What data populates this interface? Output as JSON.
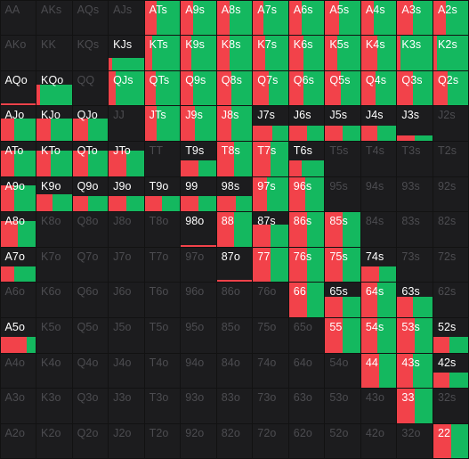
{
  "legend_colors": {
    "red": "#f2424a",
    "green": "#14b85f",
    "cell_bg": "#1c1c1e",
    "background": "#121212",
    "text_active": "#ffffff",
    "text_dim": "#4c4c50"
  },
  "ranks": [
    "A",
    "K",
    "Q",
    "J",
    "T",
    "9",
    "8",
    "7",
    "6",
    "5",
    "4",
    "3",
    "2"
  ],
  "rows": [
    {
      "cells": [
        {
          "label": "AA",
          "h": 0,
          "r": 0
        },
        {
          "label": "AKs",
          "h": 0,
          "r": 0
        },
        {
          "label": "AQs",
          "h": 0,
          "r": 0
        },
        {
          "label": "AJs",
          "h": 0,
          "r": 0
        },
        {
          "label": "ATs",
          "h": 1,
          "r": 0.35
        },
        {
          "label": "A9s",
          "h": 1,
          "r": 0.35
        },
        {
          "label": "A8s",
          "h": 1,
          "r": 0.35
        },
        {
          "label": "A7s",
          "h": 1,
          "r": 0.3
        },
        {
          "label": "A6s",
          "h": 1,
          "r": 0.35
        },
        {
          "label": "A5s",
          "h": 1,
          "r": 0.4
        },
        {
          "label": "A4s",
          "h": 1,
          "r": 0.35
        },
        {
          "label": "A3s",
          "h": 1,
          "r": 0.45
        },
        {
          "label": "A2s",
          "h": 1,
          "r": 0.35
        }
      ]
    },
    {
      "cells": [
        {
          "label": "AKo",
          "h": 0,
          "r": 0
        },
        {
          "label": "KK",
          "h": 0,
          "r": 0
        },
        {
          "label": "KQs",
          "h": 0,
          "r": 0
        },
        {
          "label": "KJs",
          "h": 0.35,
          "r": 0.1
        },
        {
          "label": "KTs",
          "h": 1,
          "r": 0.2
        },
        {
          "label": "K9s",
          "h": 1,
          "r": 0.3
        },
        {
          "label": "K8s",
          "h": 1,
          "r": 0.35
        },
        {
          "label": "K7s",
          "h": 1,
          "r": 0.35
        },
        {
          "label": "K6s",
          "h": 1,
          "r": 0.4
        },
        {
          "label": "K5s",
          "h": 1,
          "r": 0.35
        },
        {
          "label": "K4s",
          "h": 1,
          "r": 0.45
        },
        {
          "label": "K3s",
          "h": 1,
          "r": 0.1
        },
        {
          "label": "K2s",
          "h": 1,
          "r": 0.1
        }
      ]
    },
    {
      "cells": [
        {
          "label": "AQo",
          "h": 0.05,
          "r": 1
        },
        {
          "label": "KQo",
          "h": 0.6,
          "r": 0.1
        },
        {
          "label": "QQ",
          "h": 0,
          "r": 0
        },
        {
          "label": "QJs",
          "h": 1,
          "r": 0.2
        },
        {
          "label": "QTs",
          "h": 1,
          "r": 0.3
        },
        {
          "label": "Q9s",
          "h": 1,
          "r": 0.35
        },
        {
          "label": "Q8s",
          "h": 1,
          "r": 0.4
        },
        {
          "label": "Q7s",
          "h": 1,
          "r": 0.45
        },
        {
          "label": "Q6s",
          "h": 1,
          "r": 0.4
        },
        {
          "label": "Q5s",
          "h": 1,
          "r": 0.45
        },
        {
          "label": "Q4s",
          "h": 1,
          "r": 0.4
        },
        {
          "label": "Q3s",
          "h": 1,
          "r": 0.45
        },
        {
          "label": "Q2s",
          "h": 1,
          "r": 0.4
        }
      ]
    },
    {
      "cells": [
        {
          "label": "AJo",
          "h": 0.65,
          "r": 0.4
        },
        {
          "label": "KJo",
          "h": 0.65,
          "r": 0.4
        },
        {
          "label": "QJo",
          "h": 0.65,
          "r": 0.45
        },
        {
          "label": "JJ",
          "h": 0,
          "r": 0
        },
        {
          "label": "JTs",
          "h": 1,
          "r": 0.35
        },
        {
          "label": "J9s",
          "h": 1,
          "r": 0.4
        },
        {
          "label": "J8s",
          "h": 1,
          "r": 0.4
        },
        {
          "label": "J7s",
          "h": 0.45,
          "r": 0.55
        },
        {
          "label": "J6s",
          "h": 0.45,
          "r": 0.5
        },
        {
          "label": "J5s",
          "h": 0.45,
          "r": 0.5
        },
        {
          "label": "J4s",
          "h": 0.45,
          "r": 0.45
        },
        {
          "label": "J3s",
          "h": 0.15,
          "r": 0.5
        },
        {
          "label": "J2s",
          "h": 0,
          "r": 0
        }
      ]
    },
    {
      "cells": [
        {
          "label": "ATo",
          "h": 0.75,
          "r": 0.4
        },
        {
          "label": "KTo",
          "h": 0.75,
          "r": 0.4
        },
        {
          "label": "QTo",
          "h": 0.75,
          "r": 0.45
        },
        {
          "label": "JTo",
          "h": 0.75,
          "r": 0.5
        },
        {
          "label": "TT",
          "h": 0,
          "r": 0
        },
        {
          "label": "T9s",
          "h": 0.45,
          "r": 0.5
        },
        {
          "label": "T8s",
          "h": 1,
          "r": 0.5
        },
        {
          "label": "T7s",
          "h": 1,
          "r": 0.5
        },
        {
          "label": "T6s",
          "h": 0.45,
          "r": 0.35
        },
        {
          "label": "T5s",
          "h": 0,
          "r": 0
        },
        {
          "label": "T4s",
          "h": 0,
          "r": 0
        },
        {
          "label": "T3s",
          "h": 0,
          "r": 0
        },
        {
          "label": "T2s",
          "h": 0,
          "r": 0
        }
      ]
    },
    {
      "cells": [
        {
          "label": "A9o",
          "h": 0.75,
          "r": 0.4
        },
        {
          "label": "K9o",
          "h": 0.5,
          "r": 0.45
        },
        {
          "label": "Q9o",
          "h": 0.45,
          "r": 0.45
        },
        {
          "label": "J9o",
          "h": 0.45,
          "r": 0.5
        },
        {
          "label": "T9o",
          "h": 0.45,
          "r": 0.5
        },
        {
          "label": "99",
          "h": 0.45,
          "r": 0.5
        },
        {
          "label": "98s",
          "h": 0.45,
          "r": 0.55
        },
        {
          "label": "97s",
          "h": 1,
          "r": 0.4
        },
        {
          "label": "96s",
          "h": 1,
          "r": 0.45
        },
        {
          "label": "95s",
          "h": 0,
          "r": 0
        },
        {
          "label": "94s",
          "h": 0,
          "r": 0
        },
        {
          "label": "93s",
          "h": 0,
          "r": 0
        },
        {
          "label": "92s",
          "h": 0,
          "r": 0
        }
      ]
    },
    {
      "cells": [
        {
          "label": "A8o",
          "h": 0.75,
          "r": 0.5
        },
        {
          "label": "K8o",
          "h": 0,
          "r": 0
        },
        {
          "label": "Q8o",
          "h": 0,
          "r": 0
        },
        {
          "label": "J8o",
          "h": 0,
          "r": 0
        },
        {
          "label": "T8o",
          "h": 0,
          "r": 0
        },
        {
          "label": "98o",
          "h": 0.05,
          "r": 1
        },
        {
          "label": "88",
          "h": 1,
          "r": 0.5
        },
        {
          "label": "87s",
          "h": 0.65,
          "r": 0.5
        },
        {
          "label": "86s",
          "h": 1,
          "r": 0.5
        },
        {
          "label": "85s",
          "h": 1,
          "r": 0.5
        },
        {
          "label": "84s",
          "h": 0,
          "r": 0
        },
        {
          "label": "83s",
          "h": 0,
          "r": 0
        },
        {
          "label": "82s",
          "h": 0,
          "r": 0
        }
      ]
    },
    {
      "cells": [
        {
          "label": "A7o",
          "h": 0.45,
          "r": 0.4
        },
        {
          "label": "K7o",
          "h": 0,
          "r": 0
        },
        {
          "label": "Q7o",
          "h": 0,
          "r": 0
        },
        {
          "label": "J7o",
          "h": 0,
          "r": 0
        },
        {
          "label": "T7o",
          "h": 0,
          "r": 0
        },
        {
          "label": "97o",
          "h": 0,
          "r": 0
        },
        {
          "label": "87o",
          "h": 0.05,
          "r": 1
        },
        {
          "label": "77",
          "h": 1,
          "r": 0.5
        },
        {
          "label": "76s",
          "h": 1,
          "r": 0.5
        },
        {
          "label": "75s",
          "h": 1,
          "r": 0.5
        },
        {
          "label": "74s",
          "h": 0.45,
          "r": 0.5
        },
        {
          "label": "73s",
          "h": 0,
          "r": 0
        },
        {
          "label": "72s",
          "h": 0,
          "r": 0
        }
      ]
    },
    {
      "cells": [
        {
          "label": "A6o",
          "h": 0,
          "r": 0
        },
        {
          "label": "K6o",
          "h": 0,
          "r": 0
        },
        {
          "label": "Q6o",
          "h": 0,
          "r": 0
        },
        {
          "label": "J6o",
          "h": 0,
          "r": 0
        },
        {
          "label": "T6o",
          "h": 0,
          "r": 0
        },
        {
          "label": "96o",
          "h": 0,
          "r": 0
        },
        {
          "label": "86o",
          "h": 0,
          "r": 0
        },
        {
          "label": "76o",
          "h": 0,
          "r": 0
        },
        {
          "label": "66",
          "h": 1,
          "r": 0.5
        },
        {
          "label": "65s",
          "h": 0.6,
          "r": 0.5
        },
        {
          "label": "64s",
          "h": 1,
          "r": 0.45
        },
        {
          "label": "63s",
          "h": 0.6,
          "r": 0.45
        },
        {
          "label": "62s",
          "h": 0,
          "r": 0
        }
      ]
    },
    {
      "cells": [
        {
          "label": "A5o",
          "h": 0.45,
          "r": 0.75
        },
        {
          "label": "K5o",
          "h": 0,
          "r": 0
        },
        {
          "label": "Q5o",
          "h": 0,
          "r": 0
        },
        {
          "label": "J5o",
          "h": 0,
          "r": 0
        },
        {
          "label": "T5o",
          "h": 0,
          "r": 0
        },
        {
          "label": "95o",
          "h": 0,
          "r": 0
        },
        {
          "label": "85o",
          "h": 0,
          "r": 0
        },
        {
          "label": "75o",
          "h": 0,
          "r": 0
        },
        {
          "label": "65o",
          "h": 0,
          "r": 0
        },
        {
          "label": "55",
          "h": 1,
          "r": 0.5
        },
        {
          "label": "54s",
          "h": 1,
          "r": 0.45
        },
        {
          "label": "53s",
          "h": 1,
          "r": 0.5
        },
        {
          "label": "52s",
          "h": 0.45,
          "r": 0.45
        }
      ]
    },
    {
      "cells": [
        {
          "label": "A4o",
          "h": 0,
          "r": 0
        },
        {
          "label": "K4o",
          "h": 0,
          "r": 0
        },
        {
          "label": "Q4o",
          "h": 0,
          "r": 0
        },
        {
          "label": "J4o",
          "h": 0,
          "r": 0
        },
        {
          "label": "T4o",
          "h": 0,
          "r": 0
        },
        {
          "label": "94o",
          "h": 0,
          "r": 0
        },
        {
          "label": "84o",
          "h": 0,
          "r": 0
        },
        {
          "label": "74o",
          "h": 0,
          "r": 0
        },
        {
          "label": "64o",
          "h": 0,
          "r": 0
        },
        {
          "label": "54o",
          "h": 0,
          "r": 0
        },
        {
          "label": "44",
          "h": 1,
          "r": 0.5
        },
        {
          "label": "43s",
          "h": 1,
          "r": 0.45
        },
        {
          "label": "42s",
          "h": 0.45,
          "r": 0.45
        }
      ]
    },
    {
      "cells": [
        {
          "label": "A3o",
          "h": 0,
          "r": 0
        },
        {
          "label": "K3o",
          "h": 0,
          "r": 0
        },
        {
          "label": "Q3o",
          "h": 0,
          "r": 0
        },
        {
          "label": "J3o",
          "h": 0,
          "r": 0
        },
        {
          "label": "T3o",
          "h": 0,
          "r": 0
        },
        {
          "label": "93o",
          "h": 0,
          "r": 0
        },
        {
          "label": "83o",
          "h": 0,
          "r": 0
        },
        {
          "label": "73o",
          "h": 0,
          "r": 0
        },
        {
          "label": "63o",
          "h": 0,
          "r": 0
        },
        {
          "label": "53o",
          "h": 0,
          "r": 0
        },
        {
          "label": "43o",
          "h": 0,
          "r": 0
        },
        {
          "label": "33",
          "h": 1,
          "r": 0.5
        },
        {
          "label": "32s",
          "h": 0,
          "r": 0
        }
      ]
    },
    {
      "cells": [
        {
          "label": "A2o",
          "h": 0,
          "r": 0
        },
        {
          "label": "K2o",
          "h": 0,
          "r": 0
        },
        {
          "label": "Q2o",
          "h": 0,
          "r": 0
        },
        {
          "label": "J2o",
          "h": 0,
          "r": 0
        },
        {
          "label": "T2o",
          "h": 0,
          "r": 0
        },
        {
          "label": "92o",
          "h": 0,
          "r": 0
        },
        {
          "label": "82o",
          "h": 0,
          "r": 0
        },
        {
          "label": "72o",
          "h": 0,
          "r": 0
        },
        {
          "label": "62o",
          "h": 0,
          "r": 0
        },
        {
          "label": "52o",
          "h": 0,
          "r": 0
        },
        {
          "label": "42o",
          "h": 0,
          "r": 0
        },
        {
          "label": "32o",
          "h": 0,
          "r": 0
        },
        {
          "label": "22",
          "h": 1,
          "r": 0.5
        }
      ]
    }
  ]
}
